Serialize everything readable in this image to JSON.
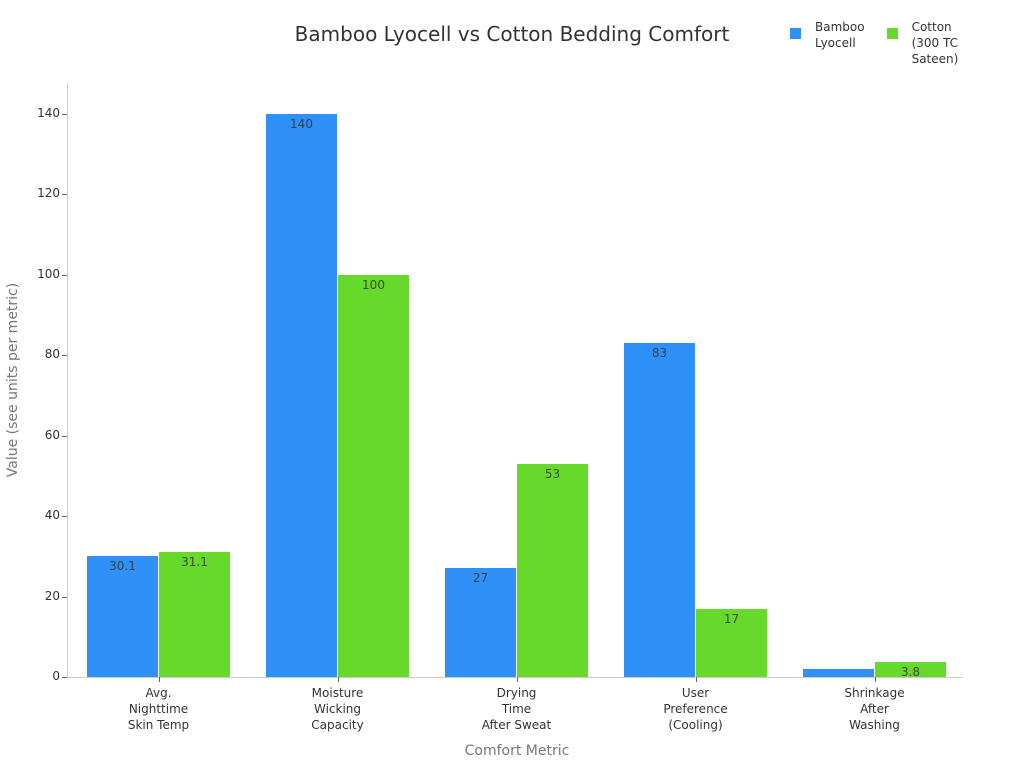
{
  "chart_data": {
    "type": "bar",
    "title": "Bamboo Lyocell vs Cotton Bedding Comfort",
    "xlabel": "Comfort Metric",
    "ylabel": "Value (see units per metric)",
    "ylim": [
      0,
      147
    ],
    "yticks": [
      0,
      20,
      40,
      60,
      80,
      100,
      120,
      140
    ],
    "grid": false,
    "legend_position": "top-right",
    "categories": [
      "Avg.\nNighttime\nSkin Temp",
      "Moisture\nWicking\nCapacity",
      "Drying\nTime\nAfter Sweat",
      "User\nPreference\n(Cooling)",
      "Shrinkage\nAfter\nWashing"
    ],
    "series": [
      {
        "name": "Bamboo Lyocell",
        "color": "#2f91f7",
        "values": [
          30.1,
          140,
          27,
          83,
          2.1
        ],
        "labels": [
          "30.1",
          "140",
          "27",
          "83",
          ""
        ]
      },
      {
        "name": "Cotton (300 TC Sateen)",
        "color": "#66d92a",
        "values": [
          31.1,
          100,
          53,
          17,
          3.8
        ],
        "labels": [
          "31.1",
          "100",
          "53",
          "17",
          "3.8"
        ]
      }
    ]
  },
  "legend": {
    "items": [
      {
        "label": "Bamboo\nLyocell",
        "color": "#2f91f7"
      },
      {
        "label": "Cotton\n(300 TC\nSateen)",
        "color": "#66d92a"
      }
    ]
  }
}
